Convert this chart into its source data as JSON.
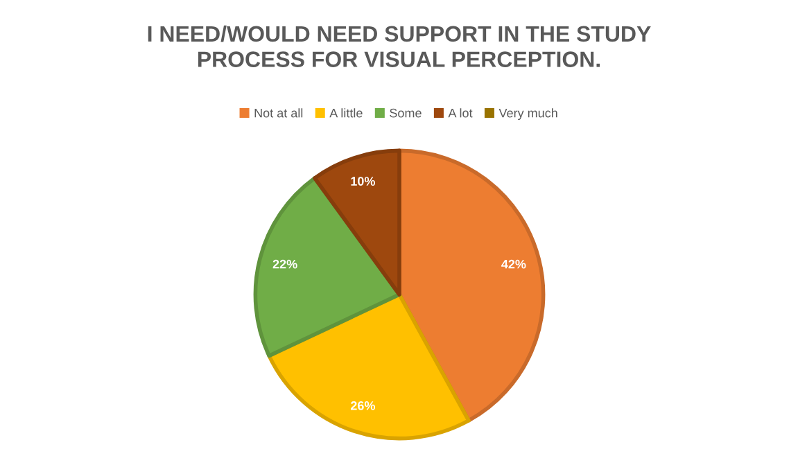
{
  "chart_data": {
    "type": "pie",
    "title": "I NEED/WOULD NEED SUPPORT IN THE STUDY\nPROCESS FOR VISUAL PERCEPTION.",
    "categories": [
      "Not at all",
      "A little",
      "Some",
      "A lot",
      "Very much"
    ],
    "values": [
      42,
      26,
      22,
      10,
      0
    ],
    "colors": [
      "#ed7d31",
      "#ffc000",
      "#70ad47",
      "#9e480e",
      "#997300"
    ],
    "value_labels": [
      "42%",
      "26%",
      "22%",
      "10%",
      null
    ],
    "legend": "top"
  }
}
